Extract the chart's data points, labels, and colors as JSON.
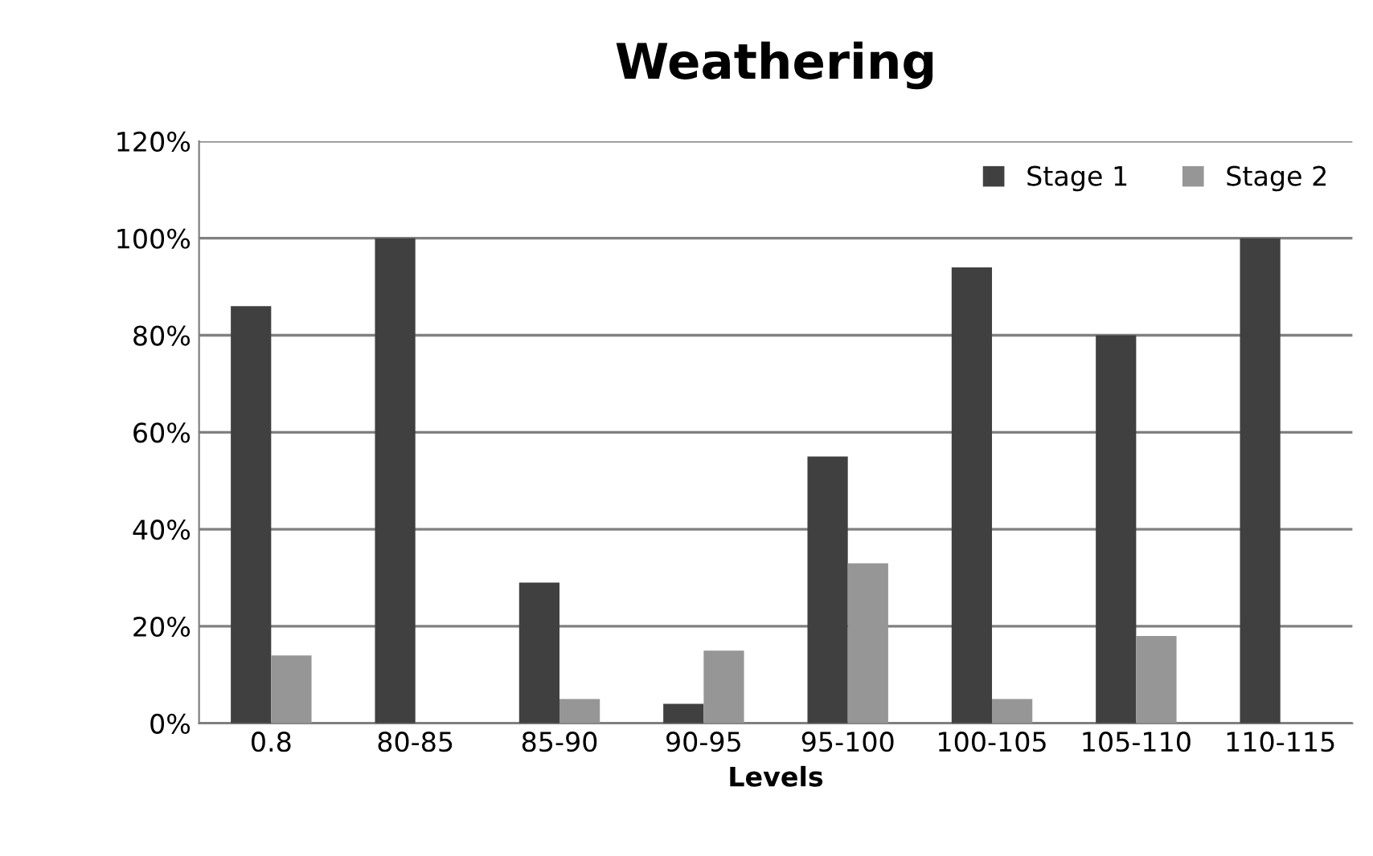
{
  "chart_data": {
    "type": "bar",
    "title": "Weathering",
    "xlabel": "Levels",
    "categories": [
      "0.8",
      "80-85",
      "85-90",
      "90-95",
      "95-100",
      "100-105",
      "105-110",
      "110-115"
    ],
    "series": [
      {
        "name": "Stage 1",
        "color": "#404040",
        "values": [
          86,
          100,
          29,
          4,
          55,
          94,
          80,
          100
        ]
      },
      {
        "name": "Stage 2",
        "color": "#969696",
        "values": [
          14,
          0,
          5,
          15,
          33,
          5,
          18,
          0
        ]
      }
    ],
    "ylim": [
      0,
      120
    ],
    "yticks": [
      {
        "value": 0,
        "label": "0%"
      },
      {
        "value": 20,
        "label": "20%"
      },
      {
        "value": 40,
        "label": "40%"
      },
      {
        "value": 60,
        "label": "60%"
      },
      {
        "value": 80,
        "label": "80%"
      },
      {
        "value": 100,
        "label": "100%"
      },
      {
        "value": 120,
        "label": "120%"
      }
    ],
    "grid": "y",
    "legend": "top right"
  }
}
